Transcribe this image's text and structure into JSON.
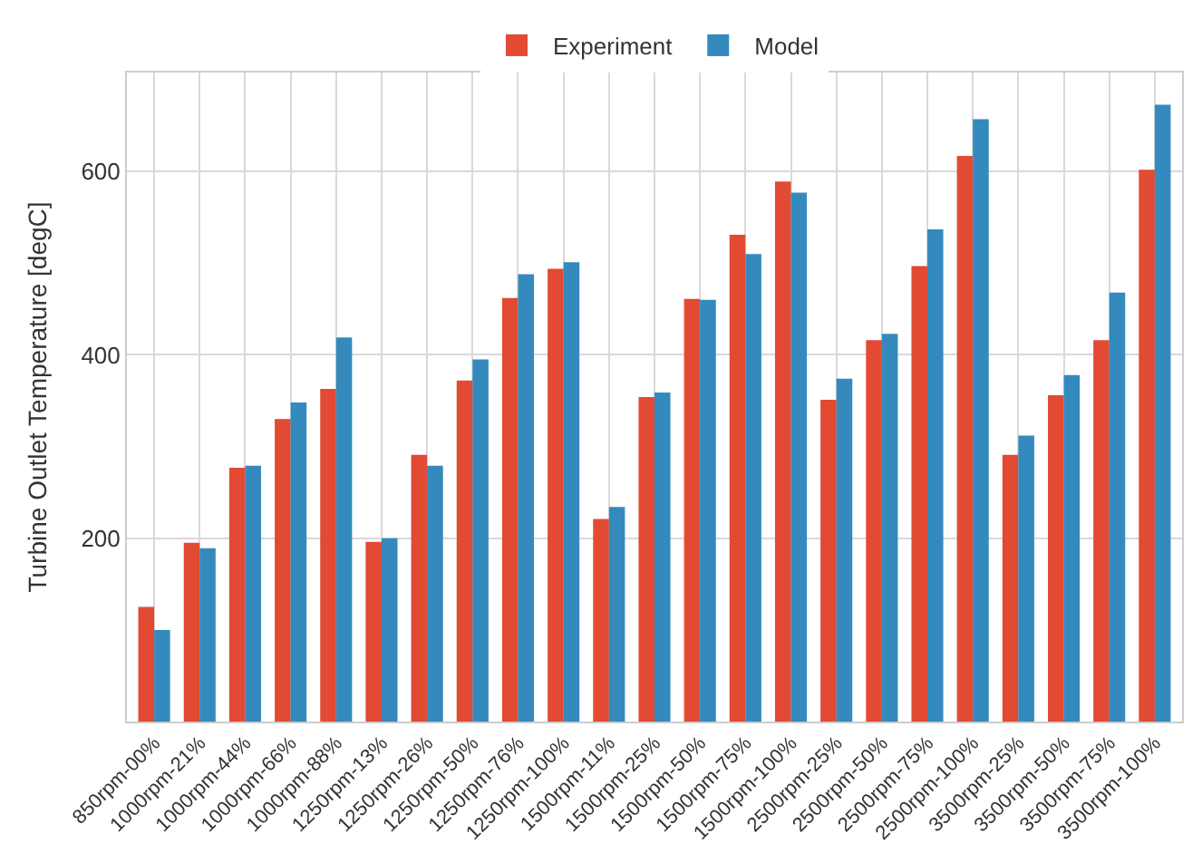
{
  "chart_data": {
    "type": "bar",
    "ylabel": "Turbine Outlet Temperature [degC]",
    "categories": [
      "850rpm-00%",
      "1000rpm-21%",
      "1000rpm-44%",
      "1000rpm-66%",
      "1000rpm-88%",
      "1250rpm-13%",
      "1250rpm-26%",
      "1250rpm-50%",
      "1250rpm-76%",
      "1250rpm-100%",
      "1500rpm-11%",
      "1500rpm-25%",
      "1500rpm-50%",
      "1500rpm-75%",
      "1500rpm-100%",
      "2500rpm-25%",
      "2500rpm-50%",
      "2500rpm-75%",
      "2500rpm-100%",
      "3500rpm-25%",
      "3500rpm-50%",
      "3500rpm-75%",
      "3500rpm-100%"
    ],
    "series": [
      {
        "name": "Experiment",
        "color": "#e24a33",
        "values": [
          125,
          195,
          277,
          330,
          363,
          196,
          291,
          372,
          462,
          494,
          221,
          354,
          461,
          531,
          589,
          351,
          416,
          497,
          617,
          291,
          356,
          416,
          602
        ]
      },
      {
        "name": "Model",
        "color": "#348abd",
        "values": [
          100,
          189,
          279,
          348,
          419,
          200,
          279,
          395,
          488,
          501,
          234,
          359,
          460,
          510,
          577,
          374,
          423,
          537,
          657,
          312,
          378,
          468,
          673
        ]
      }
    ],
    "ylim": [
      0,
      708
    ],
    "yticks": [
      200,
      400,
      600
    ],
    "grid": true,
    "legend": "top"
  }
}
